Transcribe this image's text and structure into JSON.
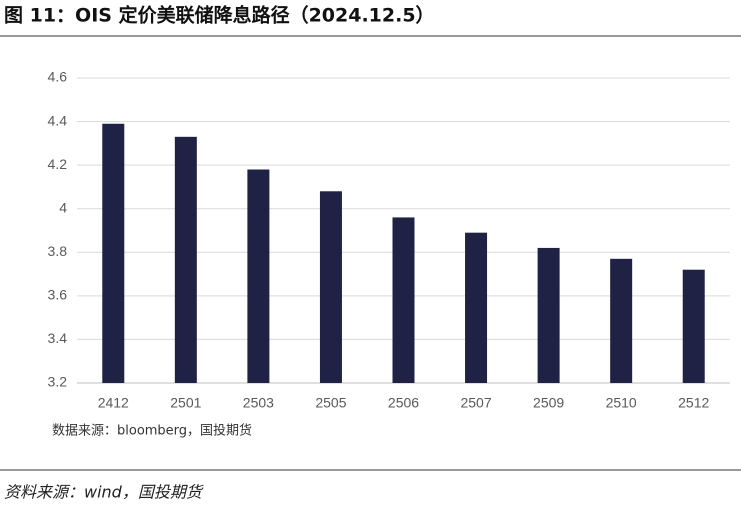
{
  "chart_data": {
    "type": "bar",
    "title": "图 11：OIS 定价美联储降息路径（2024.12.5）",
    "source": "数据来源：bloomberg，国投期货",
    "footer": "资料来源：wind，国投期货",
    "categories": [
      "2412",
      "2501",
      "2503",
      "2505",
      "2506",
      "2507",
      "2509",
      "2510",
      "2512"
    ],
    "values": [
      4.39,
      4.33,
      4.18,
      4.08,
      3.96,
      3.89,
      3.82,
      3.77,
      3.72
    ],
    "color": "#1f2244",
    "ylim": [
      3.2,
      4.6
    ],
    "yticks": [
      3.2,
      3.4,
      3.6,
      3.8,
      4,
      4.2,
      4.4,
      4.6
    ],
    "grid": true
  }
}
